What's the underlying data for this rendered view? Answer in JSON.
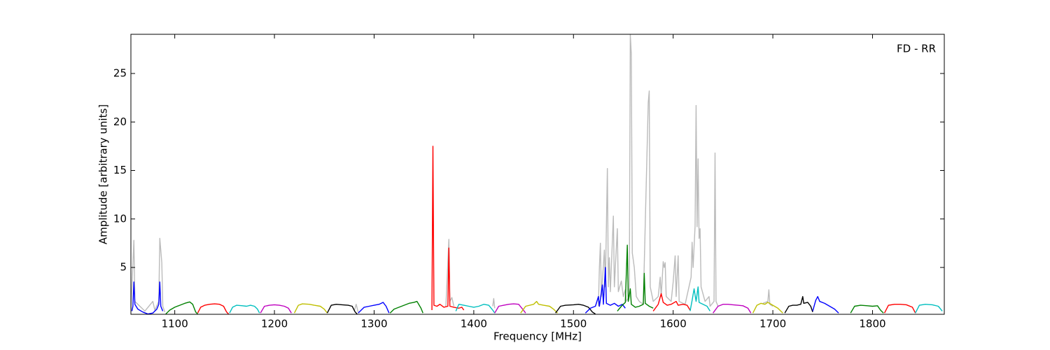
{
  "chart_data": {
    "type": "line",
    "annotation": "FD - RR",
    "xlabel": "Frequency [MHz]",
    "ylabel": "Amplitude [arbitrary units]",
    "xlim": [
      1056,
      1872
    ],
    "ylim": [
      0.17,
      29.04
    ],
    "xticks": [
      1100,
      1200,
      1300,
      1400,
      1500,
      1600,
      1700,
      1800
    ],
    "yticks": [
      5,
      10,
      15,
      20,
      25
    ],
    "grid": false,
    "series": [
      {
        "color": "#bbbbbb",
        "x": [
          1056,
          1059,
          1060,
          1070,
          1078,
          1080,
          1084,
          1085,
          1087,
          1088,
          1090,
          1100,
          1280,
          1282,
          1284,
          1300,
          1372,
          1375,
          1376,
          1378,
          1380,
          1400,
          1419,
          1420,
          1421,
          1480,
          1525,
          1526,
          1527,
          1528,
          1531,
          1532,
          1534,
          1535,
          1536,
          1537,
          1540,
          1541,
          1544,
          1545,
          1548,
          1550,
          1552,
          1553,
          1556,
          1557,
          1558,
          1559,
          1561,
          1563,
          1566,
          1570,
          1575,
          1576,
          1577,
          1580,
          1585,
          1587,
          1588,
          1590,
          1591,
          1592,
          1593,
          1598,
          1600,
          1602,
          1603,
          1605,
          1606,
          1612,
          1618,
          1619,
          1620,
          1622,
          1623,
          1624,
          1625,
          1626,
          1627,
          1628,
          1632,
          1636,
          1637,
          1641,
          1642,
          1643,
          1645,
          1670,
          1690,
          1695,
          1696,
          1697,
          1700
        ],
        "values": [
          0.5,
          7.8,
          1.5,
          0.5,
          1.5,
          0.6,
          1.5,
          8.0,
          5.5,
          1.0,
          0.4,
          null,
          0.5,
          1.2,
          0.4,
          null,
          1.0,
          7.9,
          1.5,
          1.9,
          1.0,
          null,
          1.0,
          1.8,
          0.8,
          null,
          1.0,
          5.0,
          7.5,
          2.0,
          6.8,
          3.0,
          15.2,
          3.0,
          6.0,
          2.5,
          10.3,
          3.0,
          9.0,
          2.5,
          3.6,
          2.0,
          2.7,
          1.5,
          2.0,
          29.0,
          27.0,
          6.5,
          5.0,
          2.0,
          1.5,
          1.2,
          22.0,
          23.2,
          3.0,
          1.5,
          2.0,
          4.0,
          2.0,
          5.6,
          5.0,
          5.5,
          2.0,
          1.5,
          3.5,
          6.2,
          2.0,
          6.2,
          1.5,
          1.2,
          4.0,
          7.6,
          5.0,
          9.3,
          21.7,
          9.2,
          16.2,
          8.0,
          9.0,
          3.0,
          1.5,
          2.0,
          1.0,
          1.5,
          16.8,
          1.5,
          1.0,
          null,
          1.3,
          1.5,
          2.7,
          1.2,
          1.0
        ]
      },
      {
        "color": "#0000ff",
        "x": [
          1057,
          1058,
          1059,
          1060,
          1063,
          1068,
          1073,
          1078,
          1082,
          1084,
          1085,
          1086,
          1088
        ],
        "values": [
          0.5,
          1.0,
          3.5,
          1.2,
          0.7,
          0.4,
          0.2,
          0.3,
          0.7,
          1.2,
          3.5,
          1.0,
          0.5
        ]
      },
      {
        "color": "#008000",
        "x": [
          1091,
          1095,
          1100,
          1105,
          1110,
          1115,
          1118,
          1121,
          1123
        ],
        "values": [
          0.2,
          0.6,
          0.9,
          1.1,
          1.3,
          1.45,
          1.2,
          0.4,
          0.2
        ]
      },
      {
        "color": "#ff0000",
        "x": [
          1123,
          1126,
          1130,
          1135,
          1140,
          1145,
          1149,
          1152,
          1154
        ],
        "values": [
          0.3,
          0.9,
          1.1,
          1.2,
          1.25,
          1.2,
          1.0,
          0.4,
          0.2
        ]
      },
      {
        "color": "#00bfbf",
        "x": [
          1155,
          1158,
          1162,
          1168,
          1172,
          1176,
          1180,
          1183,
          1185
        ],
        "values": [
          0.3,
          0.9,
          1.1,
          1.05,
          1.0,
          1.1,
          1.0,
          0.7,
          0.3
        ]
      },
      {
        "color": "#bf00bf",
        "x": [
          1186,
          1190,
          1195,
          1200,
          1205,
          1210,
          1214,
          1217
        ],
        "values": [
          0.3,
          1.0,
          1.1,
          1.15,
          1.1,
          1.0,
          0.8,
          0.3
        ]
      },
      {
        "color": "#bfbf00",
        "x": [
          1220,
          1224,
          1228,
          1235,
          1240,
          1246,
          1250,
          1253
        ],
        "values": [
          0.3,
          1.1,
          1.25,
          1.2,
          1.1,
          1.0,
          0.7,
          0.3
        ]
      },
      {
        "color": "#000000",
        "x": [
          1253,
          1257,
          1262,
          1268,
          1274,
          1278,
          1281,
          1283
        ],
        "values": [
          0.3,
          1.1,
          1.2,
          1.15,
          1.1,
          1.0,
          0.4,
          0.2
        ]
      },
      {
        "color": "#0000ff",
        "x": [
          1284,
          1290,
          1295,
          1300,
          1305,
          1309,
          1312,
          1315
        ],
        "values": [
          0.3,
          0.9,
          1.0,
          1.1,
          1.2,
          1.4,
          1.0,
          0.3
        ]
      },
      {
        "color": "#008000",
        "x": [
          1316,
          1320,
          1325,
          1330,
          1335,
          1340,
          1343,
          1347,
          1349
        ],
        "values": [
          0.3,
          0.7,
          0.9,
          1.1,
          1.3,
          1.4,
          1.5,
          0.8,
          0.3
        ]
      },
      {
        "color": "#ff0000",
        "x": [
          1358,
          1359,
          1360,
          1363,
          1366,
          1370,
          1374,
          1375,
          1376,
          1380,
          1385,
          1388,
          1390
        ],
        "values": [
          0.6,
          17.5,
          1.1,
          1.0,
          1.2,
          0.9,
          1.0,
          7.0,
          1.0,
          0.9,
          0.8,
          0.9,
          0.6
        ]
      },
      {
        "color": "#00bfbf",
        "x": [
          1382,
          1385,
          1390,
          1395,
          1400,
          1405,
          1410,
          1415,
          1419,
          1421
        ],
        "values": [
          0.5,
          1.2,
          1.1,
          1.0,
          0.9,
          1.0,
          1.2,
          1.1,
          0.6,
          0.3
        ]
      },
      {
        "color": "#bf00bf",
        "x": [
          1421,
          1425,
          1430,
          1435,
          1440,
          1445,
          1449,
          1452
        ],
        "values": [
          0.3,
          1.0,
          1.1,
          1.2,
          1.25,
          1.2,
          0.7,
          0.3
        ]
      },
      {
        "color": "#bfbf00",
        "x": [
          1447,
          1452,
          1460,
          1463,
          1465,
          1470,
          1476,
          1480,
          1484
        ],
        "values": [
          0.3,
          1.0,
          1.2,
          1.5,
          1.2,
          1.1,
          1.0,
          0.7,
          0.3
        ]
      },
      {
        "color": "#000000",
        "x": [
          1482,
          1487,
          1492,
          1500,
          1505,
          1510,
          1515,
          1519,
          1522
        ],
        "values": [
          0.3,
          1.0,
          1.1,
          1.15,
          1.2,
          1.1,
          0.9,
          0.4,
          0.2
        ]
      },
      {
        "color": "#0000ff",
        "x": [
          1512,
          1517,
          1522,
          1525,
          1526,
          1529,
          1530,
          1532,
          1533,
          1537,
          1541,
          1545,
          1549,
          1552
        ],
        "values": [
          0.3,
          0.8,
          1.0,
          2.0,
          1.0,
          3.2,
          1.2,
          5.0,
          1.3,
          1.1,
          1.3,
          1.0,
          1.2,
          0.8
        ]
      },
      {
        "color": "#008000",
        "x": [
          1544,
          1548,
          1552,
          1554,
          1555,
          1557,
          1558,
          1562,
          1566,
          1570,
          1571,
          1572,
          1576,
          1580
        ],
        "values": [
          0.5,
          1.0,
          1.4,
          7.3,
          1.5,
          2.8,
          1.2,
          0.9,
          1.0,
          1.2,
          4.4,
          1.3,
          1.0,
          0.8
        ]
      },
      {
        "color": "#ff0000",
        "x": [
          1580,
          1585,
          1588,
          1590,
          1594,
          1598,
          1603,
          1605,
          1610,
          1614,
          1617
        ],
        "values": [
          0.5,
          1.2,
          2.3,
          1.4,
          1.1,
          1.2,
          1.5,
          1.1,
          1.2,
          1.1,
          0.6
        ]
      },
      {
        "color": "#00bfbf",
        "x": [
          1617,
          1619,
          1621,
          1623,
          1625,
          1626,
          1630,
          1634,
          1637
        ],
        "values": [
          0.5,
          1.6,
          2.8,
          1.5,
          3.0,
          1.4,
          1.2,
          1.0,
          0.5
        ]
      },
      {
        "color": "#bf00bf",
        "x": [
          1640,
          1645,
          1650,
          1655,
          1660,
          1665,
          1670,
          1675,
          1678
        ],
        "values": [
          0.3,
          1.0,
          1.2,
          1.2,
          1.15,
          1.1,
          1.05,
          0.8,
          0.3
        ]
      },
      {
        "color": "#bfbf00",
        "x": [
          1680,
          1684,
          1688,
          1692,
          1695,
          1700,
          1705,
          1710
        ],
        "values": [
          0.3,
          1.1,
          1.3,
          1.2,
          1.4,
          1.1,
          0.8,
          0.3
        ]
      },
      {
        "color": "#000000",
        "x": [
          1712,
          1716,
          1720,
          1724,
          1728,
          1730,
          1731,
          1735,
          1738,
          1740
        ],
        "values": [
          0.3,
          1.0,
          1.1,
          1.1,
          1.2,
          2.0,
          1.3,
          1.4,
          1.0,
          0.4
        ]
      },
      {
        "color": "#0000ff",
        "x": [
          1740,
          1743,
          1745,
          1747,
          1752,
          1757,
          1762,
          1766
        ],
        "values": [
          0.5,
          1.6,
          2.0,
          1.5,
          1.3,
          1.0,
          0.7,
          0.3
        ]
      },
      {
        "color": "#008000",
        "x": [
          1778,
          1782,
          1788,
          1795,
          1800,
          1805,
          1808,
          1811
        ],
        "values": [
          0.3,
          1.0,
          1.1,
          1.05,
          1.0,
          1.05,
          0.6,
          0.3
        ]
      },
      {
        "color": "#ff0000",
        "x": [
          1812,
          1816,
          1822,
          1828,
          1834,
          1840,
          1843
        ],
        "values": [
          0.3,
          1.1,
          1.2,
          1.2,
          1.15,
          0.9,
          0.3
        ]
      },
      {
        "color": "#00bfbf",
        "x": [
          1843,
          1847,
          1853,
          1860,
          1866,
          1870
        ],
        "values": [
          0.3,
          1.1,
          1.2,
          1.15,
          1.0,
          0.5
        ]
      }
    ]
  }
}
